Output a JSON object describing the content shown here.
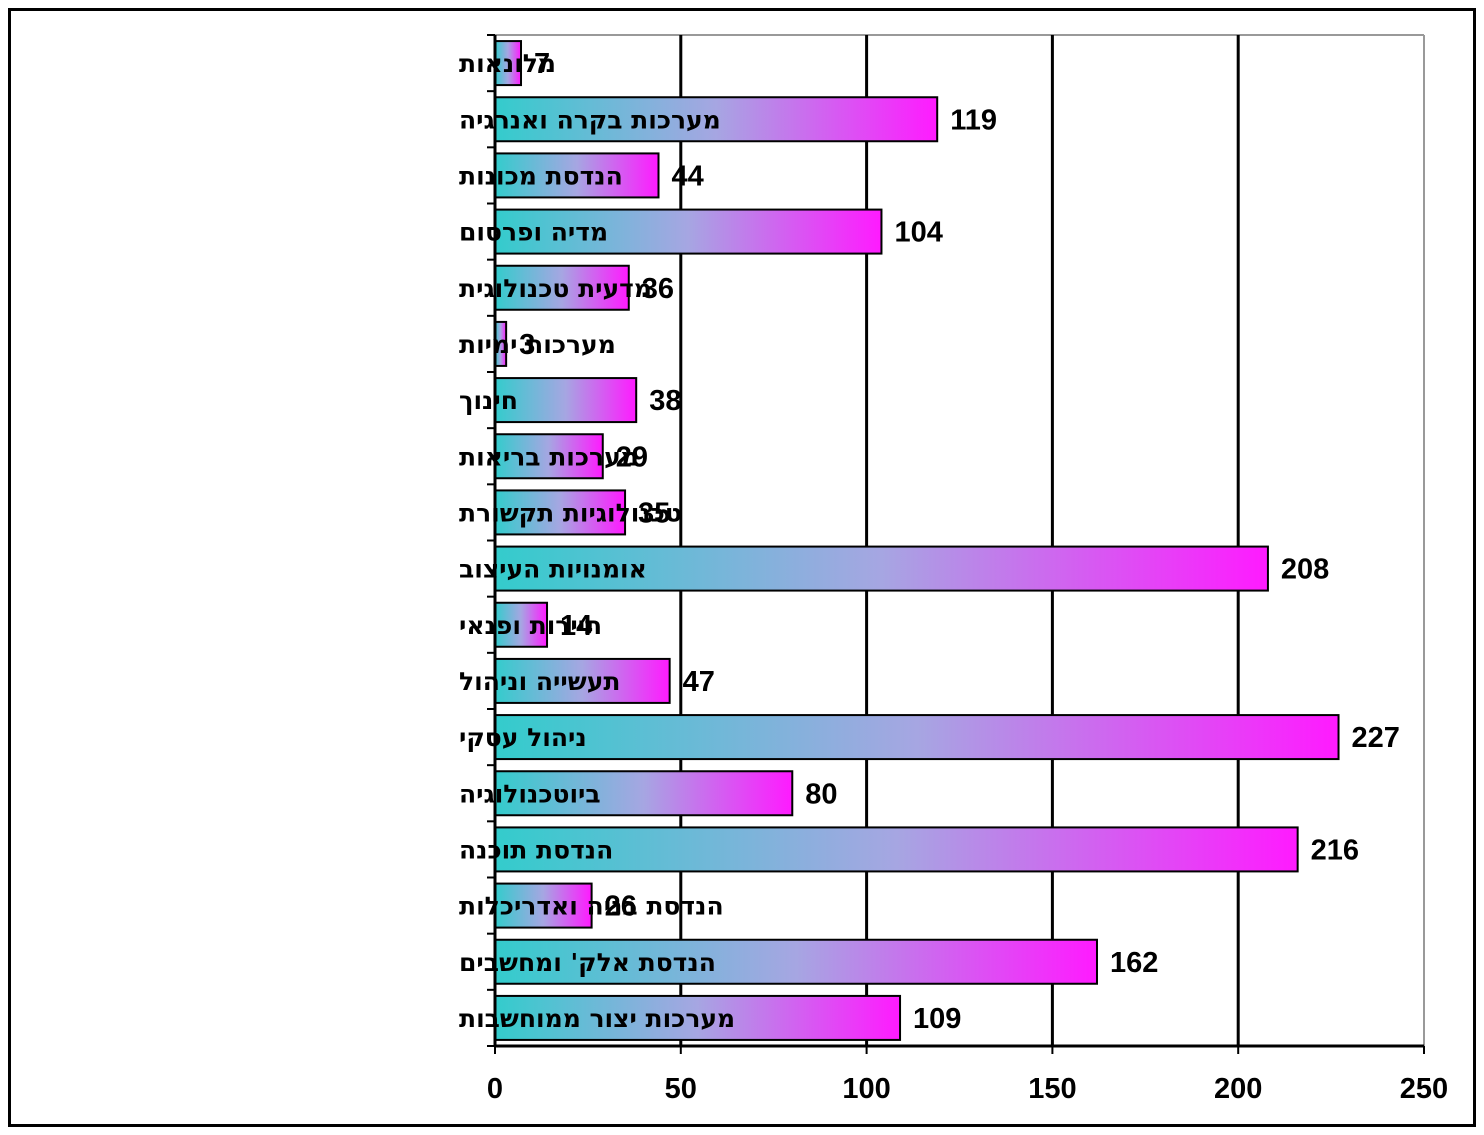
{
  "chart_data": {
    "type": "bar",
    "orientation": "horizontal",
    "categories": [
      "מלונאות",
      "מערכות בקרה ואנרגיה",
      "הנדסת מכונות",
      "מדיה ופרסום",
      "מדעית טכנולוגית",
      "מערכות ימיות",
      "חינוך",
      "מערכות בריאות",
      "טכנולוגיות תקשורת",
      "אומנויות העיצוב",
      "תיירות ופנאי",
      "תעשייה וניהול",
      "ניהול עסקי",
      "ביוטכנולוגיה",
      "הנדסת תוכנה",
      "הנדסת בניה ואדריכלות",
      "הנדסת אלק' ומחשבים",
      "מערכות יצור ממוחשבות"
    ],
    "values": [
      7,
      119,
      44,
      104,
      36,
      3,
      38,
      29,
      35,
      208,
      14,
      47,
      227,
      80,
      216,
      26,
      162,
      109
    ],
    "value_labels": [
      "7",
      "119",
      "44",
      "104",
      "36",
      "3",
      "38",
      "29",
      "35",
      "208",
      "14",
      "47",
      "227",
      "80",
      "216",
      "26",
      "162",
      "109"
    ],
    "xlim": [
      0,
      250
    ],
    "xticks": [
      "0",
      "50",
      "100",
      "150",
      "200",
      "250"
    ],
    "grid": "vertical",
    "legend": "none",
    "colors": {
      "gradient_start": "#33cccc",
      "gradient_mid": "#a6a6e2",
      "gradient_end": "#ff1aff",
      "bar_stroke": "#000000"
    }
  }
}
